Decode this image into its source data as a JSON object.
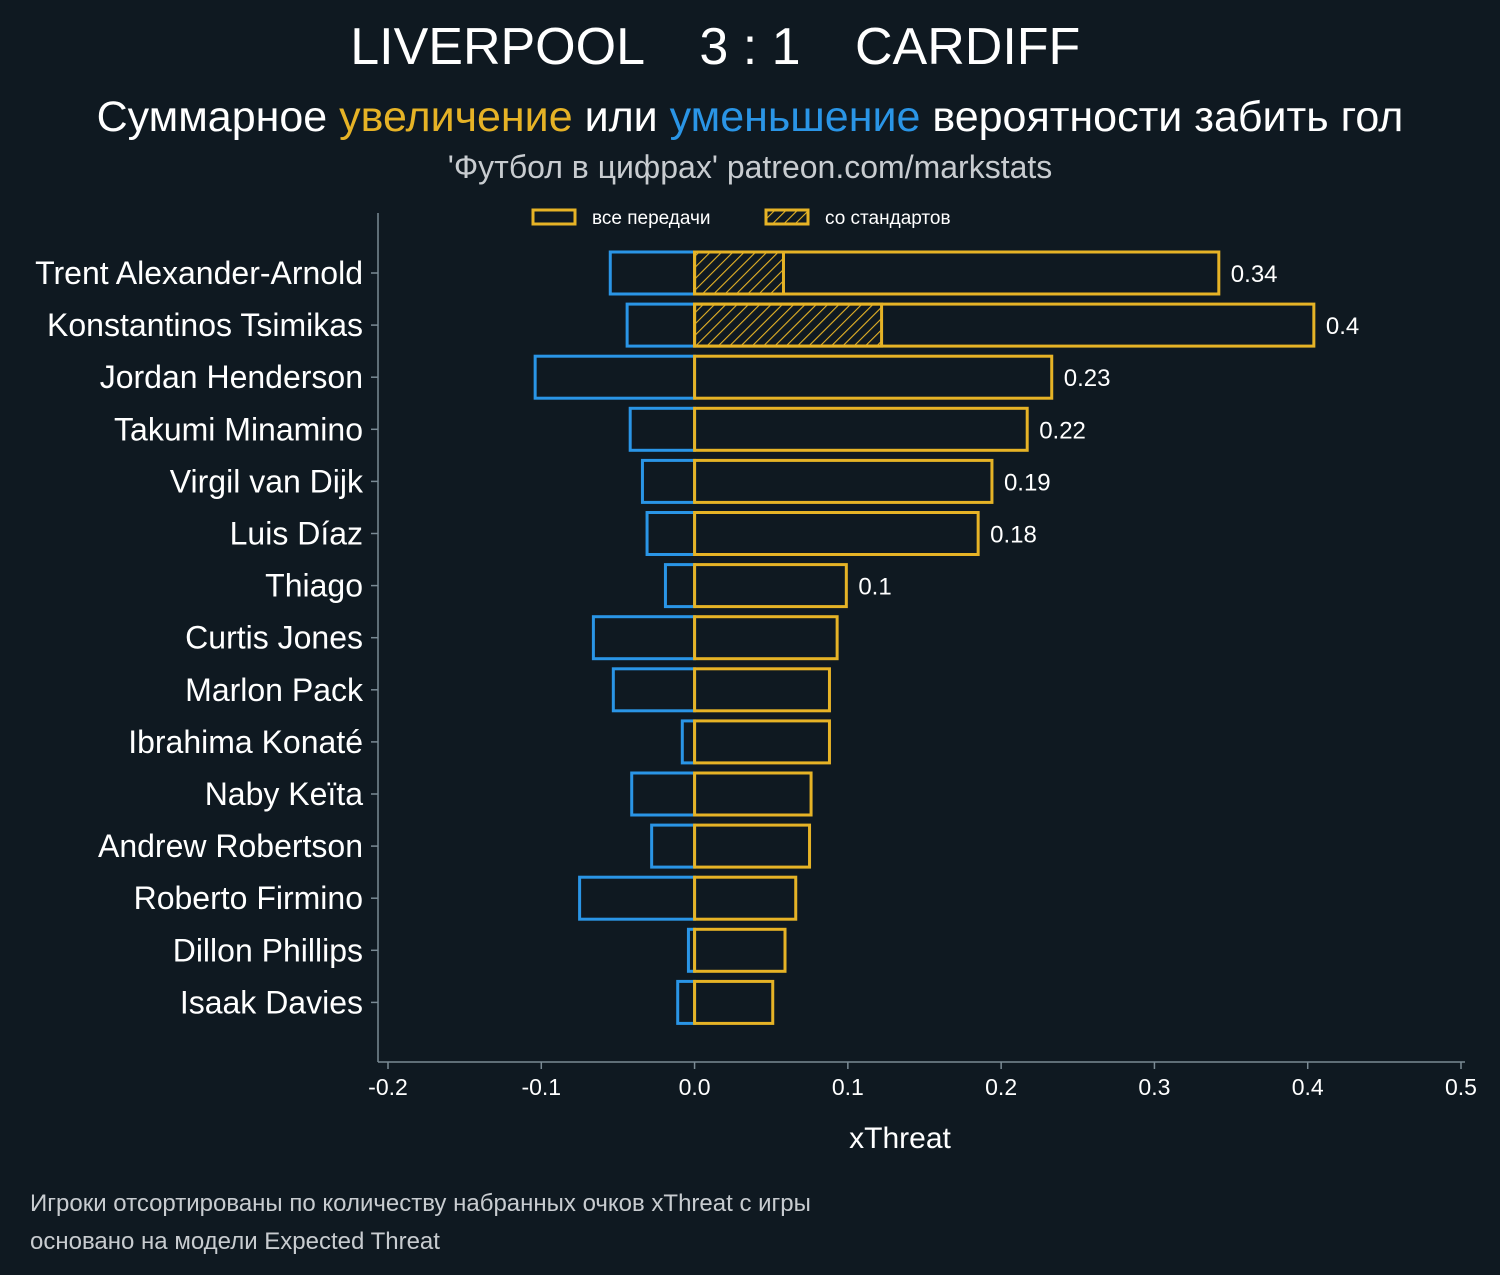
{
  "header": {
    "home_team": "LIVERPOOL",
    "score": "3 : 1",
    "away_team": "CARDIFF",
    "subtitle_parts": [
      "Суммарное ",
      "увеличение",
      " или ",
      "уменьшение",
      " вероятности забить гол"
    ],
    "source": "'Футбол в цифрах' patreon.com/markstats"
  },
  "legend": {
    "all_passes": "все передачи",
    "set_pieces": "со стандартов"
  },
  "footnote": {
    "line1": "Игроки отсортированы по количеству набранных очков xThreat с игры",
    "line2": "основано на модели Expected Threat"
  },
  "colors": {
    "background": "#0f1921",
    "positive": "#e6b326",
    "negative": "#2a95e6",
    "text": "#ffffff",
    "muted": "#c8ccd0",
    "axis": "#7a8a94"
  },
  "chart_data": {
    "type": "bar",
    "orientation": "horizontal",
    "xlabel": "xThreat",
    "xlim": [
      -0.2,
      0.5
    ],
    "xticks": [
      -0.2,
      -0.1,
      0.0,
      0.1,
      0.2,
      0.3,
      0.4,
      0.5
    ],
    "xtick_labels": [
      "-0.2",
      "-0.1",
      "0.0",
      "0.1",
      "0.2",
      "0.3",
      "0.4",
      "0.5"
    ],
    "legend_position": "top",
    "categories": [
      "Trent Alexander-Arnold",
      "Konstantinos Tsimikas",
      "Jordan Henderson",
      "Takumi Minamino",
      "Virgil van Dijk",
      "Luis Díaz",
      "Thiago",
      "Curtis Jones",
      "Marlon Pack",
      "Ibrahima Konaté",
      "Naby Keïta",
      "Andrew Robertson",
      "Roberto Firmino",
      "Dillon Phillips",
      "Isaak Davies"
    ],
    "series": [
      {
        "name": "все передачи",
        "role": "positive",
        "values": [
          0.342,
          0.404,
          0.233,
          0.217,
          0.194,
          0.185,
          0.099,
          0.093,
          0.088,
          0.088,
          0.076,
          0.075,
          0.066,
          0.059,
          0.051
        ]
      },
      {
        "role": "negative",
        "values": [
          -0.055,
          -0.044,
          -0.104,
          -0.042,
          -0.034,
          -0.031,
          -0.019,
          -0.066,
          -0.053,
          -0.008,
          -0.041,
          -0.028,
          -0.075,
          -0.004,
          -0.011
        ]
      },
      {
        "name": "со стандартов",
        "role": "set_piece",
        "values": [
          0.058,
          0.122,
          0,
          0,
          0,
          0,
          0,
          0,
          0,
          0,
          0,
          0,
          0,
          0,
          0
        ]
      }
    ],
    "data_labels": [
      "0.34",
      "0.4",
      "0.23",
      "0.22",
      "0.19",
      "0.18",
      "0.1",
      "",
      "",
      "",
      "",
      "",
      "",
      "",
      ""
    ]
  }
}
